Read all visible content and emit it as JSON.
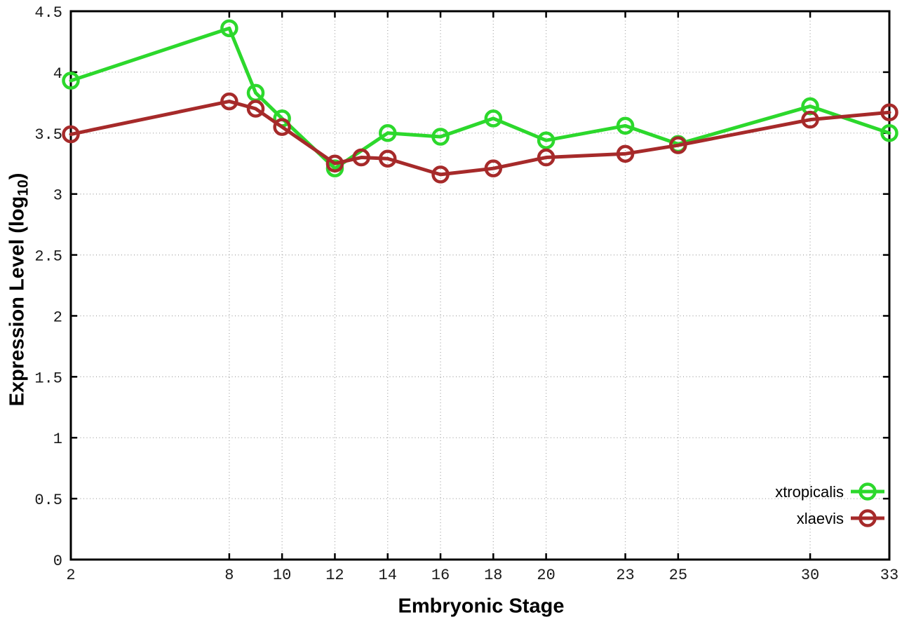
{
  "chart_data": {
    "type": "line",
    "title": "",
    "xlabel": "Embryonic Stage",
    "ylabel_prefix": "Expression Level (log",
    "ylabel_sub": "10",
    "ylabel_suffix": ")",
    "xlim": [
      2,
      33
    ],
    "ylim": [
      0,
      4.5
    ],
    "x_ticks": [
      2,
      8,
      10,
      12,
      14,
      16,
      18,
      20,
      23,
      25,
      30,
      33
    ],
    "x_tick_labels": [
      "2",
      "8",
      "10",
      "12",
      "14",
      "16",
      "18",
      "20",
      "23",
      "25",
      "30",
      "33"
    ],
    "y_ticks": [
      0,
      0.5,
      1,
      1.5,
      2,
      2.5,
      3,
      3.5,
      4,
      4.5
    ],
    "y_tick_labels": [
      "0",
      "0.5",
      "1",
      "1.5",
      "2",
      "2.5",
      "3",
      "3.5",
      "4",
      "4.5"
    ],
    "grid": true,
    "legend_position": "bottom-right",
    "series": [
      {
        "name": "xtropicalis",
        "color": "#2cd82c",
        "marker": "open-circle",
        "x": [
          2,
          8,
          9,
          10,
          12,
          14,
          16,
          18,
          20,
          23,
          25,
          30,
          33
        ],
        "y": [
          3.93,
          4.36,
          3.83,
          3.62,
          3.21,
          3.5,
          3.47,
          3.62,
          3.44,
          3.56,
          3.41,
          3.72,
          3.5
        ]
      },
      {
        "name": "xlaevis",
        "color": "#a62a2a",
        "marker": "open-circle",
        "x": [
          2,
          8,
          9,
          10,
          12,
          13,
          14,
          16,
          18,
          20,
          23,
          25,
          30,
          33
        ],
        "y": [
          3.49,
          3.76,
          3.7,
          3.55,
          3.25,
          3.3,
          3.29,
          3.16,
          3.21,
          3.3,
          3.33,
          3.4,
          3.61,
          3.67
        ]
      }
    ]
  },
  "colors": {
    "background": "#ffffff",
    "border": "#000000",
    "grid": "#a8a8a8",
    "tick_text": "#1a1a1a"
  }
}
